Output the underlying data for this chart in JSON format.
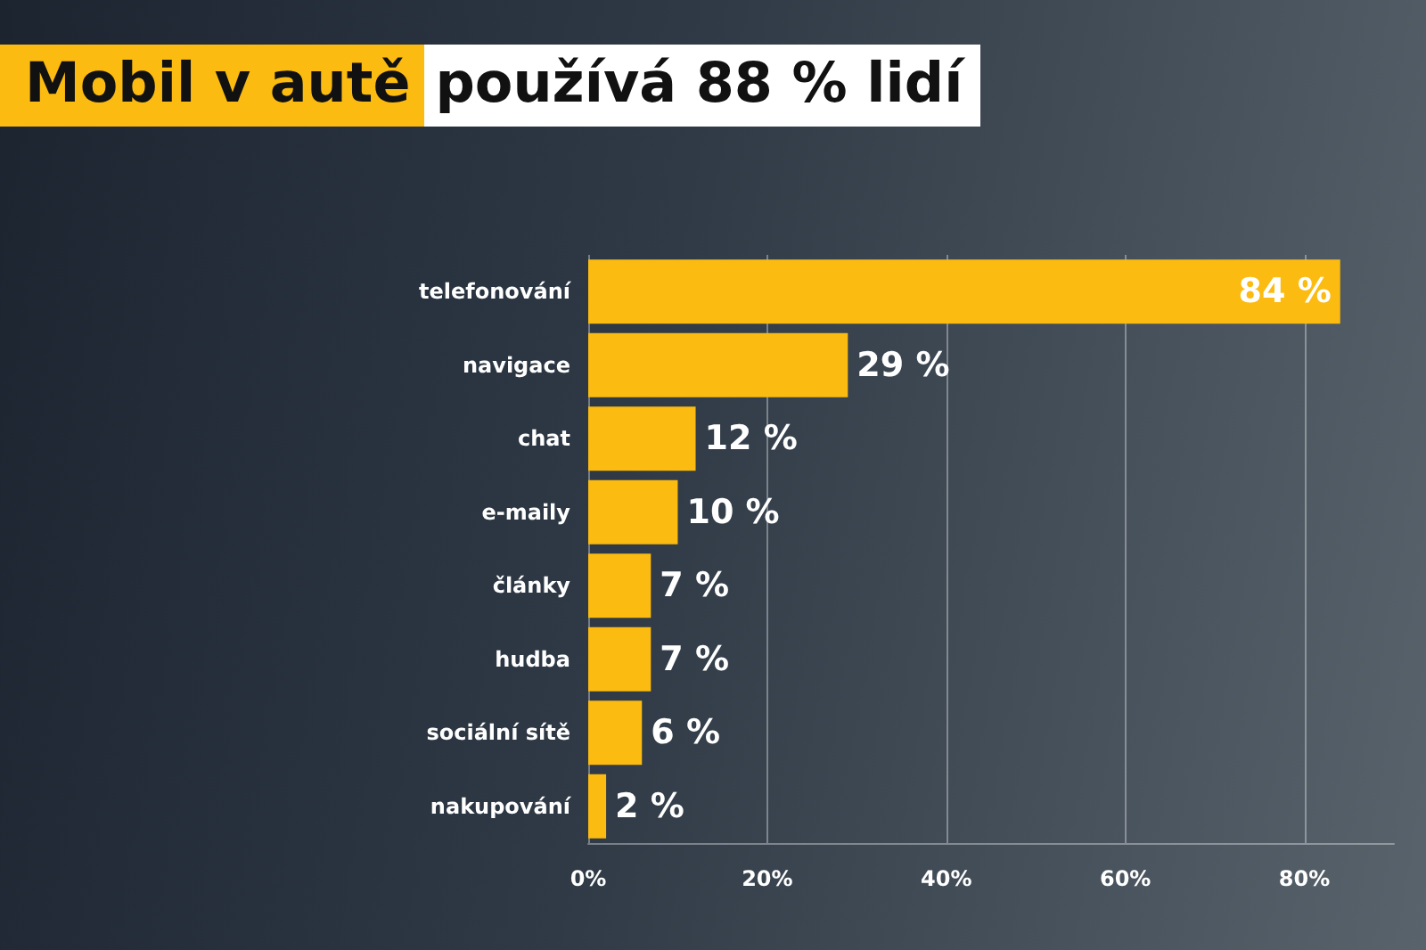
{
  "chart_data": {
    "type": "bar",
    "orientation": "horizontal",
    "title": "Mobil v autě používá 88 % lidí",
    "categories": [
      "telefonování",
      "navigace",
      "chat",
      "e-maily",
      "články",
      "hudba",
      "sociální sítě",
      "nakupování"
    ],
    "values": [
      84,
      29,
      12,
      10,
      7,
      7,
      6,
      2
    ],
    "value_labels": [
      "84 %",
      "29 %",
      "12 %",
      "10 %",
      "7 %",
      "7 %",
      "6 %",
      "2 %"
    ],
    "color": "#fbbb10",
    "xlim": [
      0,
      90
    ],
    "xticks": [
      {
        "value": 0,
        "label": "0%"
      },
      {
        "value": 20,
        "label": "20%"
      },
      {
        "value": 40,
        "label": "40%"
      },
      {
        "value": 60,
        "label": "60%"
      },
      {
        "value": 80,
        "label": "80%"
      }
    ],
    "grid": "x"
  }
}
